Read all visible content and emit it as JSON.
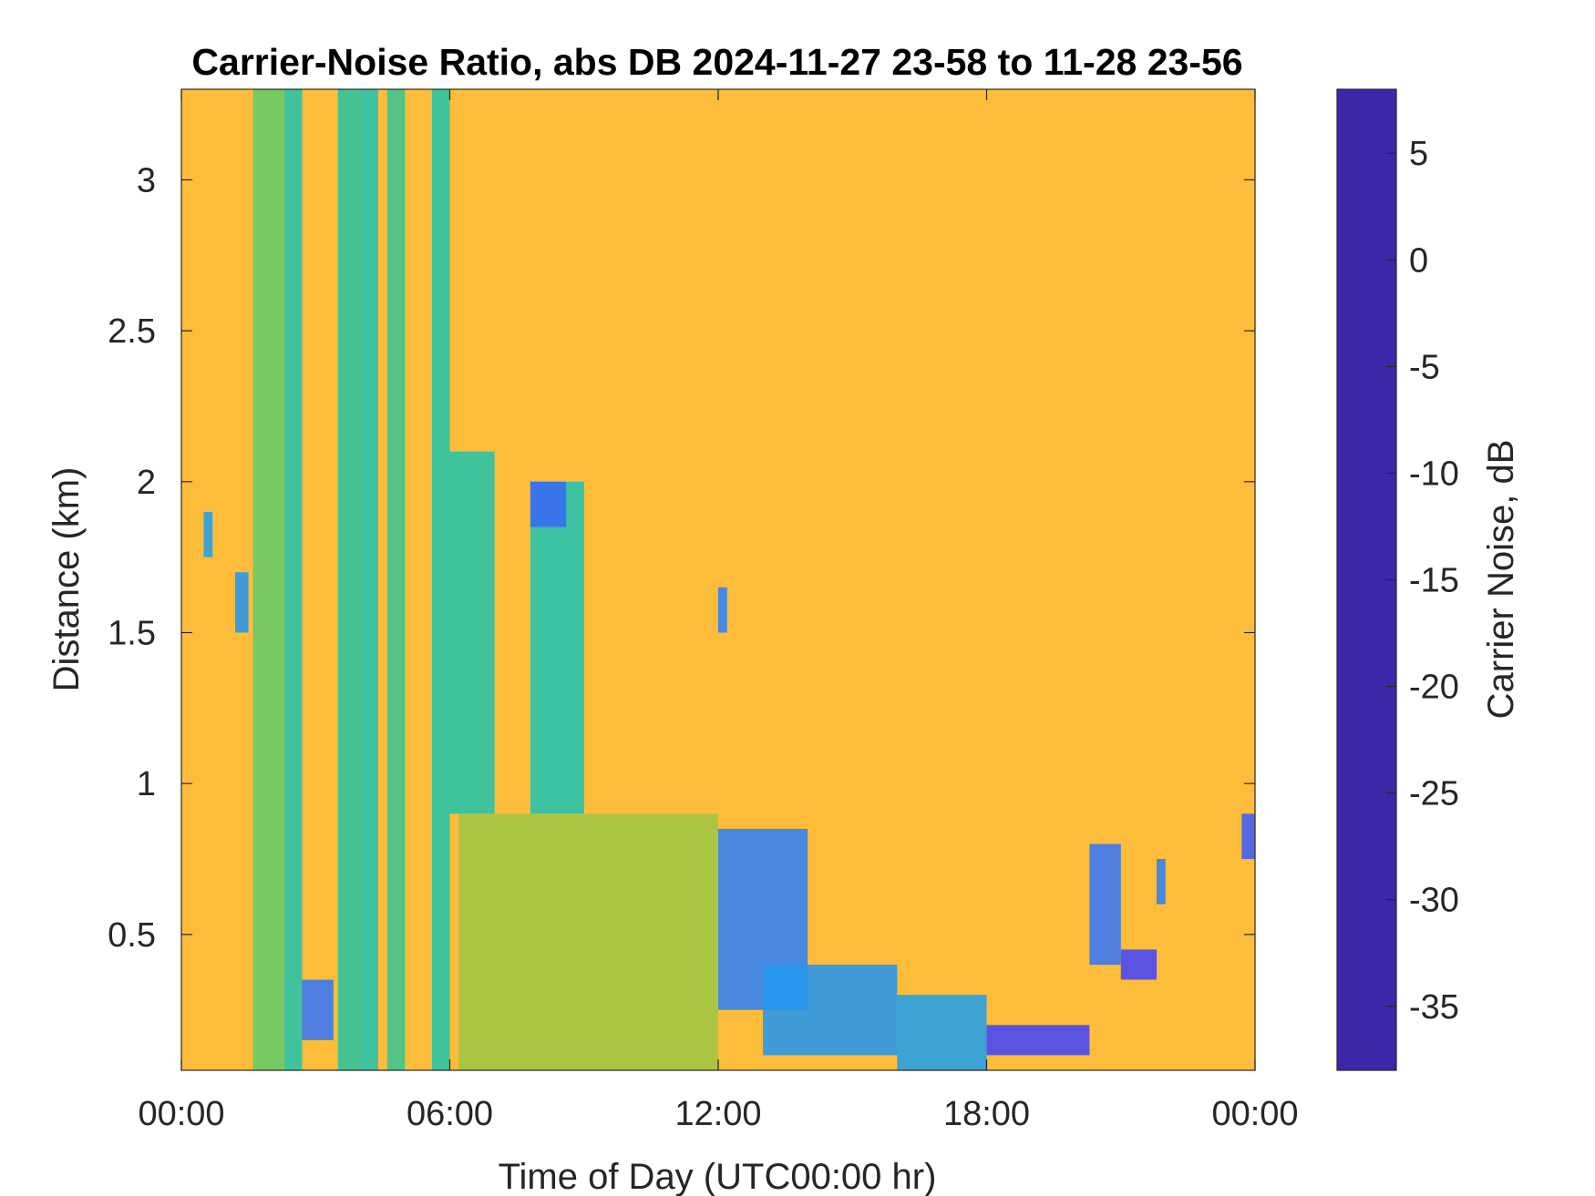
{
  "chart_data": {
    "type": "heatmap",
    "title": "Carrier-Noise Ratio, abs DB 2024-11-27 23-58 to 11-28 23-56",
    "xlabel": "Time of Day (UTC00:00 hr)",
    "ylabel": "Distance (km)",
    "colorbar_label": "Carrier Noise, dB",
    "xlim": [
      0,
      24
    ],
    "ylim": [
      0.05,
      3.3
    ],
    "clim": [
      -38,
      8
    ],
    "x_ticks": [
      {
        "value": 0,
        "label": "00:00"
      },
      {
        "value": 6,
        "label": "06:00"
      },
      {
        "value": 12,
        "label": "12:00"
      },
      {
        "value": 18,
        "label": "18:00"
      },
      {
        "value": 24,
        "label": "00:00"
      }
    ],
    "y_ticks": [
      {
        "value": 0.5,
        "label": "0.5"
      },
      {
        "value": 1.0,
        "label": "1"
      },
      {
        "value": 1.5,
        "label": "1.5"
      },
      {
        "value": 2.0,
        "label": "2"
      },
      {
        "value": 2.5,
        "label": "2.5"
      },
      {
        "value": 3.0,
        "label": "3"
      }
    ],
    "colorbar_ticks": [
      {
        "value": 5,
        "label": "5"
      },
      {
        "value": 0,
        "label": "0"
      },
      {
        "value": -5,
        "label": "-5"
      },
      {
        "value": -10,
        "label": "-10"
      },
      {
        "value": -15,
        "label": "-15"
      },
      {
        "value": -20,
        "label": "-20"
      },
      {
        "value": -25,
        "label": "-25"
      },
      {
        "value": -30,
        "label": "-30"
      },
      {
        "value": -35,
        "label": "-35"
      }
    ],
    "background_value_db": -31,
    "colormap": [
      "#3e26a8",
      "#4743f8",
      "#2e87f7",
      "#10bfd5",
      "#2bc59e",
      "#7fcd51",
      "#d1bb2e",
      "#fdc033",
      "#f9fb15"
    ],
    "grid": false,
    "features": [
      {
        "description_value": "vertical streak",
        "t_start": 1.6,
        "t_end": 2.3,
        "d_min": 0.05,
        "d_max": 3.3,
        "db": -19
      },
      {
        "description_value": "vertical streak",
        "t_start": 2.3,
        "t_end": 2.7,
        "d_min": 0.05,
        "d_max": 3.3,
        "db": -14
      },
      {
        "description_value": "vertical streak",
        "t_start": 3.5,
        "t_end": 4.0,
        "d_min": 0.05,
        "d_max": 3.3,
        "db": -15
      },
      {
        "description_value": "vertical streak",
        "t_start": 4.0,
        "t_end": 4.4,
        "d_min": 0.05,
        "d_max": 3.3,
        "db": -13
      },
      {
        "description_value": "vertical streak",
        "t_start": 4.6,
        "t_end": 5.0,
        "d_min": 0.05,
        "d_max": 3.3,
        "db": -16
      },
      {
        "description_value": "vertical streak",
        "t_start": 5.6,
        "t_end": 6.0,
        "d_min": 0.05,
        "d_max": 3.3,
        "db": -14
      },
      {
        "description_value": "descending layer",
        "t_start": 6.0,
        "t_end": 7.0,
        "d_min": 0.9,
        "d_max": 2.1,
        "db": -14
      },
      {
        "description_value": "aerosol block",
        "t_start": 7.8,
        "t_end": 9.0,
        "d_min": 0.9,
        "d_max": 2.0,
        "db": -13
      },
      {
        "description_value": "strong patch",
        "t_start": 7.8,
        "t_end": 8.6,
        "d_min": 1.85,
        "d_max": 2.0,
        "db": -1
      },
      {
        "description_value": "boundary layer haze",
        "t_start": 6.2,
        "t_end": 12.0,
        "d_min": 0.05,
        "d_max": 0.9,
        "db": -23
      },
      {
        "description_value": "strong patch",
        "t_start": 2.7,
        "t_end": 3.4,
        "d_min": 0.15,
        "d_max": 0.35,
        "db": -2
      },
      {
        "description_value": "strong patch",
        "t_start": 0.5,
        "t_end": 0.7,
        "d_min": 1.75,
        "d_max": 1.9,
        "db": -6
      },
      {
        "description_value": "strong patch",
        "t_start": 1.2,
        "t_end": 1.5,
        "d_min": 1.5,
        "d_max": 1.7,
        "db": -5
      },
      {
        "description_value": "strong patch",
        "t_start": 12.0,
        "t_end": 12.2,
        "d_min": 1.5,
        "d_max": 1.65,
        "db": -3
      },
      {
        "description_value": "boundary layer top",
        "t_start": 12.0,
        "t_end": 14.0,
        "d_min": 0.25,
        "d_max": 0.85,
        "db": -3
      },
      {
        "description_value": "boundary layer",
        "t_start": 13.0,
        "t_end": 16.0,
        "d_min": 0.1,
        "d_max": 0.4,
        "db": -5
      },
      {
        "description_value": "boundary layer",
        "t_start": 16.0,
        "t_end": 18.0,
        "d_min": 0.05,
        "d_max": 0.3,
        "db": -6
      },
      {
        "description_value": "strong layer",
        "t_start": 18.0,
        "t_end": 20.3,
        "d_min": 0.1,
        "d_max": 0.2,
        "db": 2
      },
      {
        "description_value": "rising layer",
        "t_start": 20.3,
        "t_end": 21.0,
        "d_min": 0.4,
        "d_max": 0.8,
        "db": -2
      },
      {
        "description_value": "strong patch",
        "t_start": 21.0,
        "t_end": 21.8,
        "d_min": 0.35,
        "d_max": 0.45,
        "db": 2
      },
      {
        "description_value": "strong patch",
        "t_start": 21.8,
        "t_end": 22.0,
        "d_min": 0.6,
        "d_max": 0.75,
        "db": -3
      },
      {
        "description_value": "strong patch",
        "t_start": 23.7,
        "t_end": 24.0,
        "d_min": 0.75,
        "d_max": 0.9,
        "db": 0
      }
    ]
  }
}
